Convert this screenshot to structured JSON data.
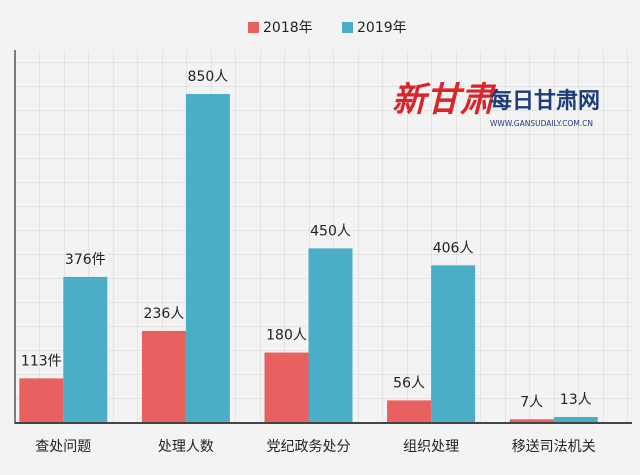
{
  "chart_data": {
    "type": "bar",
    "categories": [
      "查处问题",
      "处理人数",
      "党纪政务处分",
      "组织处理",
      "移送司法机关"
    ],
    "series": [
      {
        "name": "2018年",
        "color": "#e8605f",
        "values": [
          113,
          236,
          180,
          56,
          7
        ],
        "value_labels": [
          "113件",
          "236人",
          "180人",
          "56人",
          "7人"
        ]
      },
      {
        "name": "2019年",
        "color": "#4badc6",
        "values": [
          376,
          850,
          450,
          406,
          13
        ],
        "value_labels": [
          "376件",
          "850人",
          "450人",
          "406人",
          "13人"
        ]
      }
    ],
    "legend": "top",
    "watermark": {
      "logo": "新甘肃",
      "site": "每日甘肃网",
      "url": "WWW.GANSUDAILY.COM.CN"
    }
  }
}
